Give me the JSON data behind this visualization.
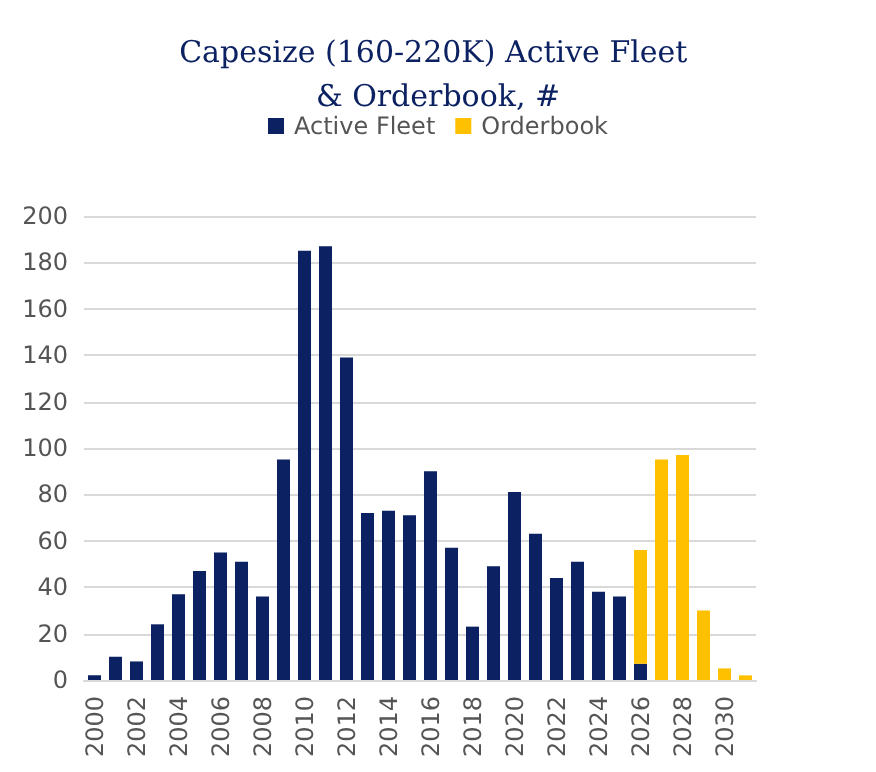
{
  "chart_data": {
    "type": "bar",
    "title": "Capesize (160-220K) Active Fleet & Orderbook, #",
    "categories": [
      "2000",
      null,
      "2002",
      null,
      "2004",
      null,
      "2006",
      null,
      "2008",
      null,
      "2010",
      null,
      "2012",
      null,
      "2014",
      null,
      "2016",
      null,
      "2018",
      null,
      "2020",
      null,
      "2022",
      null,
      "2024",
      null,
      "2026",
      null,
      "2028",
      null,
      "2030",
      null
    ],
    "series": [
      {
        "name": "Active Fleet",
        "color": "#0b2161",
        "values": [
          2,
          10,
          8,
          24,
          37,
          47,
          55,
          51,
          36,
          95,
          185,
          187,
          139,
          72,
          73,
          71,
          90,
          57,
          23,
          49,
          81,
          63,
          44,
          51,
          38,
          36,
          7,
          null,
          null,
          null,
          null,
          null
        ]
      },
      {
        "name": "Orderbook",
        "color": "#ffc000",
        "values": [
          null,
          null,
          null,
          null,
          null,
          null,
          null,
          null,
          null,
          null,
          null,
          null,
          null,
          null,
          null,
          null,
          null,
          null,
          null,
          null,
          null,
          null,
          null,
          null,
          null,
          null,
          49,
          95,
          97,
          30,
          5,
          2
        ]
      }
    ],
    "stacked": true,
    "ylim": [
      0,
      200
    ],
    "yticks": [
      0,
      20,
      40,
      60,
      80,
      100,
      120,
      140,
      160,
      180,
      200
    ],
    "grid": "y",
    "legend": "top"
  }
}
